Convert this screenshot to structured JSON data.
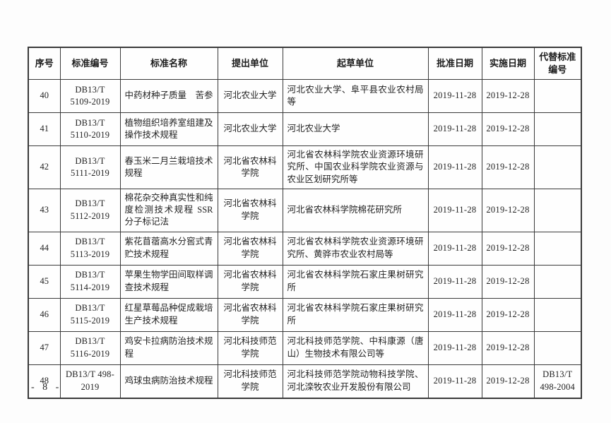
{
  "table": {
    "columns": [
      {
        "key": "seq",
        "label": "序号"
      },
      {
        "key": "code",
        "label": "标准编号"
      },
      {
        "key": "name",
        "label": "标准名称"
      },
      {
        "key": "proposer",
        "label": "提出单位"
      },
      {
        "key": "drafter",
        "label": "起草单位"
      },
      {
        "key": "approval",
        "label": "批准日期"
      },
      {
        "key": "impl",
        "label": "实施日期"
      },
      {
        "key": "replaced",
        "label": "代替标准编号"
      }
    ],
    "rows": [
      {
        "seq": "40",
        "code": "DB13/T 5109-2019",
        "name": "中药材种子质量　苦参",
        "proposer": "河北农业大学",
        "drafter": "河北农业大学、阜平县农业农村局等",
        "approval": "2019-11-28",
        "impl": "2019-12-28",
        "replaced": ""
      },
      {
        "seq": "41",
        "code": "DB13/T 5110-2019",
        "name": "植物组织培养室组建及操作技术规程",
        "proposer": "河北农业大学",
        "drafter": "河北农业大学",
        "approval": "2019-11-28",
        "impl": "2019-12-28",
        "replaced": ""
      },
      {
        "seq": "42",
        "code": "DB13/T 5111-2019",
        "name": "春玉米二月兰栽培技术规程",
        "proposer": "河北省农林科学院",
        "drafter": "河北省农林科学院农业资源环境研究所、中国农业科学院农业资源与农业区划研究所等",
        "approval": "2019-11-28",
        "impl": "2019-12-28",
        "replaced": ""
      },
      {
        "seq": "43",
        "code": "DB13/T 5112-2019",
        "name": "棉花杂交种真实性和纯度检测技术规程 SSR 分子标记法",
        "proposer": "河北省农林科学院",
        "drafter": "河北省农林科学院棉花研究所",
        "approval": "2019-11-28",
        "impl": "2019-12-28",
        "replaced": ""
      },
      {
        "seq": "44",
        "code": "DB13/T 5113-2019",
        "name": "紫花苜蓿高水分窖式青贮技术规程",
        "proposer": "河北省农林科学院",
        "drafter": "河北省农林科学院农业资源环境研究所、黄骅市农业农村局等",
        "approval": "2019-11-28",
        "impl": "2019-12-28",
        "replaced": ""
      },
      {
        "seq": "45",
        "code": "DB13/T 5114-2019",
        "name": "苹果生物学田间取样调查技术规程",
        "proposer": "河北省农林科学院",
        "drafter": "河北省农林科学院石家庄果树研究所",
        "approval": "2019-11-28",
        "impl": "2019-12-28",
        "replaced": ""
      },
      {
        "seq": "46",
        "code": "DB13/T 5115-2019",
        "name": "红星草莓品种促成栽培生产技术规程",
        "proposer": "河北省农林科学院",
        "drafter": "河北省农林科学院石家庄果树研究所",
        "approval": "2019-11-28",
        "impl": "2019-12-28",
        "replaced": ""
      },
      {
        "seq": "47",
        "code": "DB13/T 5116-2019",
        "name": "鸡安卡拉病防治技术规程",
        "proposer": "河北科技师范学院",
        "drafter": "河北科技师范学院、中科康源（唐山）生物技术有限公司等",
        "approval": "2019-11-28",
        "impl": "2019-12-28",
        "replaced": ""
      },
      {
        "seq": "48",
        "code": "DB13/T 498-2019",
        "name": "鸡球虫病防治技术规程",
        "proposer": "河北科技师范学院",
        "drafter": "河北科技师范学院动物科技学院、河北滦牧农业开发股份有限公司",
        "approval": "2019-11-28",
        "impl": "2019-12-28",
        "replaced": "DB13/T 498-2004"
      }
    ]
  },
  "footer": {
    "page_label": "- 8 -"
  }
}
